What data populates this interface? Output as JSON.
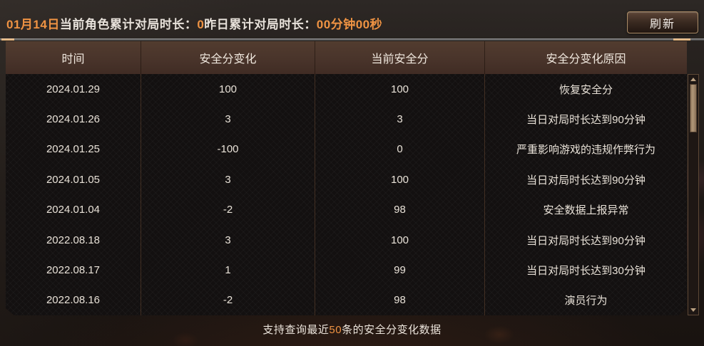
{
  "header": {
    "date": "01月14日",
    "today_label": "当前角色累计对局时长：",
    "today_value": "0",
    "yesterday_label": "昨日累计对局时长：",
    "yesterday_value": "00分钟00秒",
    "refresh_label": "刷新"
  },
  "table": {
    "columns": [
      "时间",
      "安全分变化",
      "当前安全分",
      "安全分变化原因"
    ],
    "rows": [
      {
        "time": "2024.01.29",
        "change": "100",
        "score": "100",
        "reason": "恢复安全分"
      },
      {
        "time": "2024.01.26",
        "change": "3",
        "score": "3",
        "reason": "当日对局时长达到90分钟"
      },
      {
        "time": "2024.01.25",
        "change": "-100",
        "score": "0",
        "reason": "严重影响游戏的违规作弊行为"
      },
      {
        "time": "2024.01.05",
        "change": "3",
        "score": "100",
        "reason": "当日对局时长达到90分钟"
      },
      {
        "time": "2024.01.04",
        "change": "-2",
        "score": "98",
        "reason": "安全数据上报异常"
      },
      {
        "time": "2022.08.18",
        "change": "3",
        "score": "100",
        "reason": "当日对局时长达到90分钟"
      },
      {
        "time": "2022.08.17",
        "change": "1",
        "score": "99",
        "reason": "当日对局时长达到30分钟"
      },
      {
        "time": "2022.08.16",
        "change": "-2",
        "score": "98",
        "reason": "演员行为"
      }
    ]
  },
  "footer": {
    "prefix": "支持查询最近",
    "count": "50",
    "suffix": "条的安全分变化数据"
  },
  "icons": {
    "scroll_up": "up-triangle",
    "scroll_down": "down-triangle"
  },
  "colors": {
    "accent_orange": "#ef9343",
    "text_light": "#e9e2d8",
    "header_bg": "#48332a",
    "body_bg": "#131010",
    "scroll_thumb": "#a98f72",
    "button_border": "#aa8b66"
  }
}
